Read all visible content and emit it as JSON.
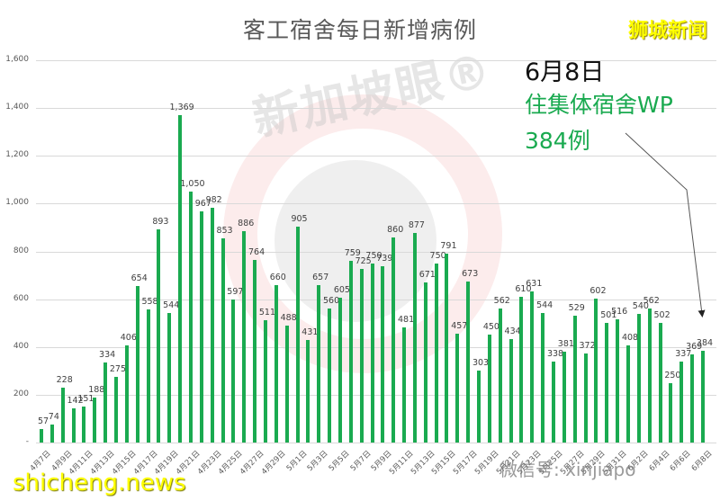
{
  "chart_data": {
    "type": "bar",
    "title": "客工宿舍每日新增病例",
    "xlabel": "",
    "ylabel": "",
    "ylim": [
      0,
      1600
    ],
    "yticks": [
      "-",
      "200",
      "400",
      "600",
      "800",
      "1,000",
      "1,200",
      "1,400",
      "1,600"
    ],
    "grid": true,
    "legend": null,
    "bar_color": "#1aaa50",
    "categories": [
      "4月7日",
      "4月8日",
      "4月9日",
      "4月10日",
      "4月11日",
      "4月12日",
      "4月13日",
      "4月14日",
      "4月15日",
      "4月16日",
      "4月17日",
      "4月18日",
      "4月19日",
      "4月20日",
      "4月21日",
      "4月22日",
      "4月23日",
      "4月24日",
      "4月25日",
      "4月26日",
      "4月27日",
      "4月28日",
      "4月29日",
      "4月30日",
      "5月1日",
      "5月2日",
      "5月3日",
      "5月4日",
      "5月5日",
      "5月6日",
      "5月7日",
      "5月8日",
      "5月9日",
      "5月10日",
      "5月11日",
      "5月12日",
      "5月13日",
      "5月14日",
      "5月15日",
      "5月16日",
      "5月17日",
      "5月18日",
      "5月19日",
      "5月20日",
      "5月21日",
      "5月22日",
      "5月23日",
      "5月24日",
      "5月25日",
      "5月26日",
      "5月27日",
      "5月28日",
      "5月29日",
      "5月30日",
      "5月31日",
      "6月1日",
      "6月2日",
      "6月3日",
      "6月4日",
      "6月5日",
      "6月6日",
      "6月7日",
      "6月8日"
    ],
    "values": [
      57,
      74,
      228,
      142,
      151,
      188,
      334,
      275,
      406,
      654,
      558,
      893,
      544,
      1369,
      1050,
      967,
      982,
      853,
      597,
      886,
      764,
      511,
      660,
      488,
      905,
      431,
      657,
      560,
      605,
      759,
      725,
      750,
      739,
      860,
      481,
      877,
      671,
      750,
      791,
      457,
      673,
      303,
      450,
      562,
      434,
      610,
      631,
      544,
      338,
      381,
      529,
      372,
      602,
      501,
      516,
      408,
      540,
      562,
      502,
      250,
      337,
      369,
      384
    ],
    "visible_xtick_labels": [
      "4月7日",
      "4月9日",
      "4月11日",
      "4月13日",
      "4月15日",
      "4月17日",
      "4月19日",
      "4月21日",
      "4月23日",
      "4月25日",
      "4月27日",
      "4月29日",
      "5月1日",
      "5月3日",
      "5月5日",
      "5月7日",
      "5月9日",
      "5月11日",
      "5月13日",
      "5月15日",
      "5月17日",
      "5月19日",
      "5月21日",
      "5月23日",
      "5月25日",
      "5月27日",
      "5月29日",
      "5月31日",
      "6月2日",
      "6月4日",
      "6月6日",
      "6月8日"
    ],
    "annotations": [
      {
        "text": "6月8日",
        "color": "#111111"
      },
      {
        "text": "住集体宿舍WP",
        "color": "#1aaa50"
      },
      {
        "text": "384例",
        "color": "#1aaa50",
        "arrow_to": "6月8日"
      }
    ]
  },
  "header": {
    "title": "客工宿舍每日新增病例",
    "brand": "狮城新闻"
  },
  "annotation": {
    "date": "6月8日",
    "line1": "住集体宿舍WP",
    "line2": "384例"
  },
  "watermarks": {
    "center_text": "新加坡眼®",
    "footer_brand": "shicheng.news",
    "wechat": "微信号: xinjiapo"
  }
}
